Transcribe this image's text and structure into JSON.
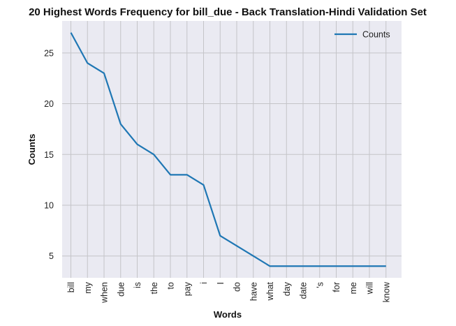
{
  "colors": {
    "plot_background": "#eaeaf2",
    "grid": "#c4c4c8",
    "line": "#1f77b4"
  },
  "chart_data": {
    "type": "line",
    "title": "20 Highest Words Frequency for bill_due - Back Translation-Hindi Validation Set",
    "xlabel": "Words",
    "ylabel": "Counts",
    "categories": [
      "bill",
      "my",
      "when",
      "due",
      "is",
      "the",
      "to",
      "pay",
      "i",
      "I",
      "do",
      "have",
      "what",
      "day",
      "date",
      "'s",
      "for",
      "me",
      "will",
      "know"
    ],
    "series": [
      {
        "name": "Counts",
        "values": [
          27,
          24,
          23,
          18,
          16,
          15,
          13,
          13,
          12,
          7,
          6,
          5,
          4,
          4,
          4,
          4,
          4,
          4,
          4,
          4
        ]
      }
    ],
    "yticks": [
      5,
      10,
      15,
      20,
      25
    ],
    "ylim": [
      2.85,
      28.15
    ],
    "grid": true,
    "legend": "top-right"
  }
}
